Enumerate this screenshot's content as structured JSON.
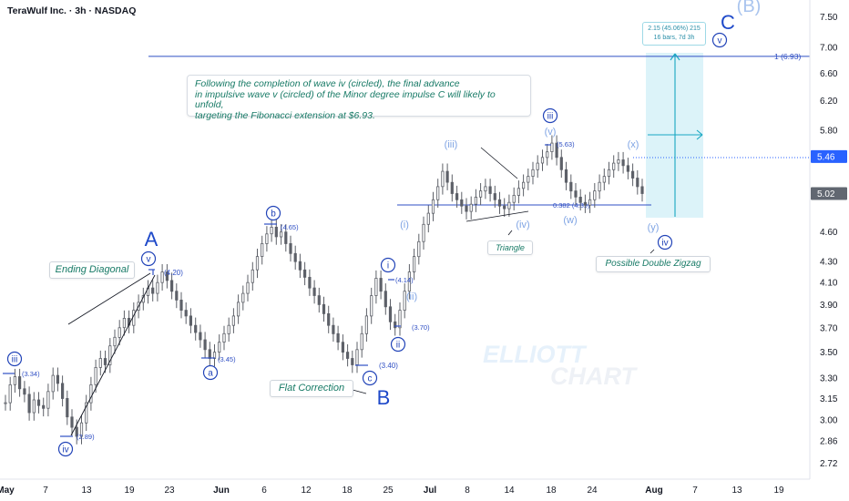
{
  "header": {
    "title": "TeraWulf Inc. · 3h · NASDAQ"
  },
  "note": {
    "lines": [
      "Following the completion of wave iv (circled), the final advance",
      "in impulsive wave v (circled) of the Minor degree impulse C will likely to unfold,",
      "targeting the Fibonacci extension at $6.93."
    ]
  },
  "fib_box": {
    "line1": "2.15 (45.06%) 215",
    "line2": "16 bars, 7d 3h"
  },
  "labels": {
    "ending_diagonal": "Ending Diagonal",
    "flat_correction": "Flat Correction",
    "triangle": "Triangle",
    "double_zigzag": "Possible Double Zigzag",
    "watermark1": "ELLIOTT",
    "watermark2": "CHART"
  },
  "waves": {
    "A": "A",
    "B": "B",
    "C": "C",
    "B_paren": "(B)",
    "iii_circ": "iii",
    "iv_circ": "iv",
    "v_circ": "v",
    "a": "a",
    "b": "b",
    "c": "c",
    "i_circ": "i",
    "ii_circ": "ii",
    "iii_circ2": "iii",
    "iv_circ2": "iv",
    "v_circ2": "v",
    "i_p": "(i)",
    "ii_p": "(ii)",
    "iii_p": "(iii)",
    "iv_p": "(iv)",
    "v_p": "(v)",
    "w_p": "(w)",
    "x_p": "(x)",
    "y_p": "(y)"
  },
  "price_marks": {
    "p334": "(3.34)",
    "p289": "(2.89)",
    "p420": "(4.20)",
    "p345": "(3.45)",
    "p465": "(4.65)",
    "p340": "(3.40)",
    "p414": "(4.14)",
    "p370": "(3.70)",
    "p563": "(5.63)",
    "fib382": "0.382 (4.89)",
    "fib1": "1 (6.93)"
  },
  "chart_data": {
    "type": "candlestick",
    "y_axis": {
      "scale": "log",
      "ticks": [
        7.5,
        7.0,
        6.6,
        6.2,
        5.8,
        5.4,
        5.02,
        4.6,
        4.3,
        4.1,
        3.9,
        3.7,
        3.5,
        3.3,
        3.15,
        3.0,
        2.86,
        2.72
      ],
      "tick_labels": [
        "7.50",
        "7.00",
        "6.60",
        "6.20",
        "5.80",
        "",
        "",
        "4.60",
        "4.30",
        "4.10",
        "3.90",
        "3.70",
        "3.50",
        "3.30",
        "3.15",
        "3.00",
        "2.86",
        "2.72"
      ]
    },
    "x_axis": {
      "tick_labels": [
        "May",
        "7",
        "13",
        "19",
        "23",
        "Jun",
        "6",
        "12",
        "18",
        "25",
        "Jul",
        "8",
        "14",
        "18",
        "24",
        "Aug",
        "7",
        "13",
        "19"
      ]
    },
    "price_tags": [
      {
        "value": 5.46,
        "label": "5.46",
        "color": "#2962ff"
      },
      {
        "value": 5.02,
        "label": "5.02",
        "color": "#616771"
      }
    ],
    "levels": [
      {
        "name": "fib_1",
        "value": 6.93,
        "label": "1 (6.93)"
      },
      {
        "name": "fib_0382",
        "value": 4.89,
        "label": "0.382 (4.89)"
      }
    ],
    "target_zone": {
      "low": 4.82,
      "high": 6.93
    },
    "series": [
      {
        "values": [
          3.12,
          3.25,
          3.31,
          3.22,
          3.18,
          3.05,
          3.14,
          3.1,
          3.08,
          3.2,
          3.32,
          3.26,
          3.15,
          3.02,
          2.95,
          2.89,
          2.98,
          3.12,
          3.25,
          3.38,
          3.45,
          3.4,
          3.55,
          3.62,
          3.7,
          3.78,
          3.72,
          3.85,
          3.92,
          3.98,
          4.05,
          4.0,
          4.1,
          4.2,
          4.12,
          4.02,
          3.94,
          3.85,
          3.8,
          3.72,
          3.66,
          3.6,
          3.52,
          3.45,
          3.5,
          3.58,
          3.65,
          3.72,
          3.8,
          3.92,
          4.0,
          4.1,
          4.22,
          4.35,
          4.48,
          4.58,
          4.65,
          4.55,
          4.6,
          4.48,
          4.38,
          4.3,
          4.22,
          4.15,
          4.05,
          3.98,
          3.9,
          3.82,
          3.72,
          3.65,
          3.58,
          3.5,
          3.45,
          3.4,
          3.52,
          3.65,
          3.8,
          3.98,
          4.14,
          4.02,
          3.88,
          3.75,
          3.7,
          3.85,
          4.02,
          4.2,
          4.35,
          4.5,
          4.68,
          4.8,
          4.95,
          5.1,
          5.28,
          5.15,
          5.02,
          4.95,
          4.88,
          4.82,
          4.9,
          4.98,
          5.05,
          5.1,
          5.02,
          4.95,
          4.88,
          4.85,
          4.92,
          5.0,
          5.08,
          5.15,
          5.22,
          5.3,
          5.38,
          5.45,
          5.52,
          5.63,
          5.45,
          5.3,
          5.15,
          5.05,
          4.98,
          4.92,
          4.89,
          4.95,
          5.05,
          5.15,
          5.22,
          5.3,
          5.38,
          5.42,
          5.35,
          5.28,
          5.2,
          5.1,
          5.02
        ]
      }
    ]
  }
}
